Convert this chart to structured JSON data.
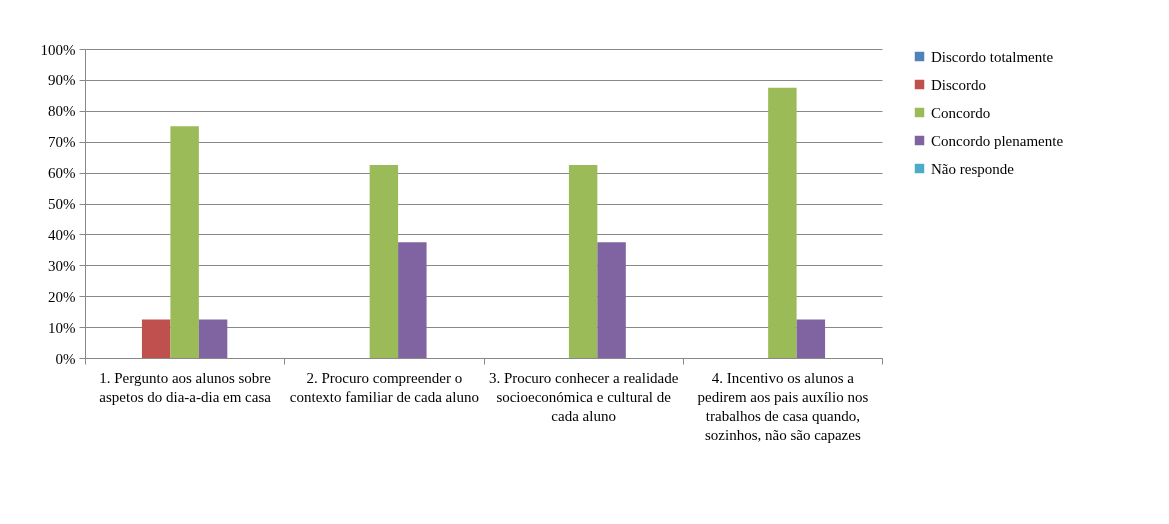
{
  "chart_data": {
    "type": "bar",
    "categories": [
      "1. Pergunto aos alunos sobre aspetos do dia-a-dia em casa",
      "2. Procuro compreender o contexto familiar de cada aluno",
      "3. Procuro conhecer a realidade socioeconómica e cultural de cada aluno",
      "4. Incentivo os alunos a pedirem aos pais auxílio nos trabalhos de casa quando, sozinhos, não são capazes"
    ],
    "series": [
      {
        "name": "Discordo totalmente",
        "color": "#4f81bd",
        "values": [
          0,
          0,
          0,
          0
        ]
      },
      {
        "name": "Discordo",
        "color": "#c0504d",
        "values": [
          12.5,
          0,
          0,
          0
        ]
      },
      {
        "name": "Concordo",
        "color": "#9bbb59",
        "values": [
          75,
          62.5,
          62.5,
          87.5
        ]
      },
      {
        "name": "Concordo plenamente",
        "color": "#8064a2",
        "values": [
          12.5,
          37.5,
          37.5,
          12.5
        ]
      },
      {
        "name": "Não responde",
        "color": "#4bacc6",
        "values": [
          0,
          0,
          0,
          0
        ]
      }
    ],
    "ylim": [
      0,
      100
    ],
    "yticks": [
      {
        "value": 0,
        "label": "0%"
      },
      {
        "value": 10,
        "label": "10%"
      },
      {
        "value": 20,
        "label": "20%"
      },
      {
        "value": 30,
        "label": "30%"
      },
      {
        "value": 40,
        "label": "40%"
      },
      {
        "value": 50,
        "label": "50%"
      },
      {
        "value": 60,
        "label": "60%"
      },
      {
        "value": 70,
        "label": "70%"
      },
      {
        "value": 80,
        "label": "80%"
      },
      {
        "value": 90,
        "label": "90%"
      },
      {
        "value": 100,
        "label": "100%"
      }
    ],
    "grid": "y",
    "legend": "right"
  }
}
